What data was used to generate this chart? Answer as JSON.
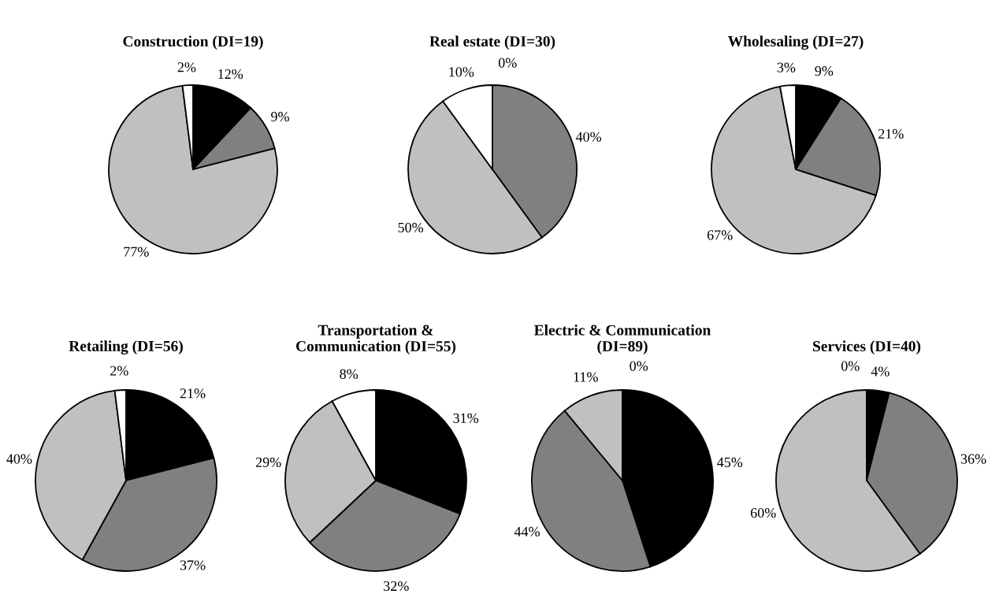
{
  "chart_data": [
    {
      "type": "pie",
      "title": "Construction (DI=19)",
      "categories": [
        null,
        null,
        null,
        null
      ],
      "values": [
        12,
        9,
        77,
        2
      ],
      "value_labels": [
        "12%",
        "9%",
        "77%",
        "2%"
      ],
      "colors": [
        "#000000",
        "#808080",
        "#c0c0c0",
        "#ffffff"
      ]
    },
    {
      "type": "pie",
      "title": "Real estate (DI=30)",
      "categories": [
        null,
        null,
        null,
        null
      ],
      "values": [
        0,
        40,
        50,
        10
      ],
      "value_labels": [
        "0%",
        "40%",
        "50%",
        "10%"
      ],
      "colors": [
        "#000000",
        "#808080",
        "#c0c0c0",
        "#ffffff"
      ]
    },
    {
      "type": "pie",
      "title": "Wholesaling (DI=27)",
      "categories": [
        null,
        null,
        null,
        null
      ],
      "values": [
        9,
        21,
        67,
        3
      ],
      "value_labels": [
        "9%",
        "21%",
        "67%",
        "3%"
      ],
      "colors": [
        "#000000",
        "#808080",
        "#c0c0c0",
        "#ffffff"
      ]
    },
    {
      "type": "pie",
      "title": "Retailing (DI=56)",
      "categories": [
        null,
        null,
        null,
        null
      ],
      "values": [
        21,
        37,
        40,
        2
      ],
      "value_labels": [
        "21%",
        "37%",
        "40%",
        "2%"
      ],
      "colors": [
        "#000000",
        "#808080",
        "#c0c0c0",
        "#ffffff"
      ]
    },
    {
      "type": "pie",
      "title": "Transportation &\nCommunication (DI=55)",
      "categories": [
        null,
        null,
        null,
        null
      ],
      "values": [
        31,
        32,
        29,
        8
      ],
      "value_labels": [
        "31%",
        "32%",
        "29%",
        "8%"
      ],
      "colors": [
        "#000000",
        "#808080",
        "#c0c0c0",
        "#ffffff"
      ]
    },
    {
      "type": "pie",
      "title": "Electric & Communication\n(DI=89)",
      "categories": [
        null,
        null,
        null,
        null
      ],
      "values": [
        45,
        44,
        11,
        0
      ],
      "value_labels": [
        "45%",
        "44%",
        "11%",
        "0%"
      ],
      "colors": [
        "#000000",
        "#808080",
        "#c0c0c0",
        "#ffffff"
      ]
    },
    {
      "type": "pie",
      "title": "Services (DI=40)",
      "categories": [
        null,
        null,
        null,
        null
      ],
      "values": [
        4,
        36,
        60,
        0
      ],
      "value_labels": [
        "4%",
        "36%",
        "60%",
        "0%"
      ],
      "colors": [
        "#000000",
        "#808080",
        "#c0c0c0",
        "#ffffff"
      ]
    }
  ]
}
